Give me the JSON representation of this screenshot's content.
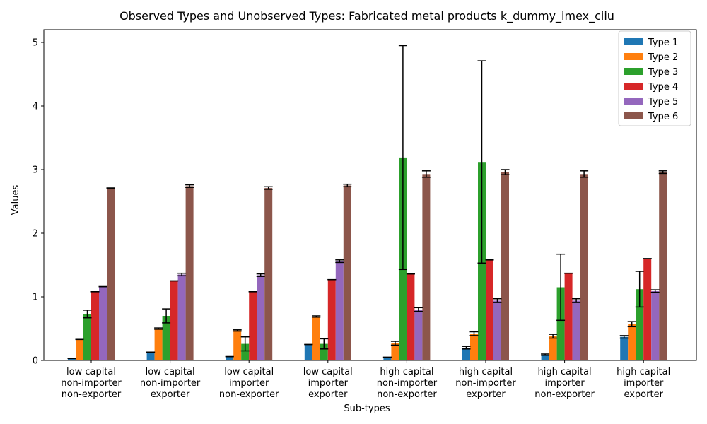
{
  "chart_data": {
    "type": "bar",
    "title": "Observed Types and Unobserved Types: Fabricated metal products k_dummy_imex_ciiu",
    "xlabel": "Sub-types",
    "ylabel": "Values",
    "ylim": [
      0,
      5.2
    ],
    "yticks": [
      0,
      1,
      2,
      3,
      4,
      5
    ],
    "grid": false,
    "legend_position": "upper right",
    "categories": [
      [
        "low capital",
        "non-importer",
        "non-exporter"
      ],
      [
        "low capital",
        "non-importer",
        "exporter"
      ],
      [
        "low capital",
        "importer",
        "non-exporter"
      ],
      [
        "low capital",
        "importer",
        "exporter"
      ],
      [
        "high capital",
        "non-importer",
        "non-exporter"
      ],
      [
        "high capital",
        "non-importer",
        "exporter"
      ],
      [
        "high capital",
        "importer",
        "non-exporter"
      ],
      [
        "high capital",
        "importer",
        "exporter"
      ]
    ],
    "series": [
      {
        "name": "Type 1",
        "color": "#1f77b4",
        "values": [
          0.03,
          0.13,
          0.06,
          0.25,
          0.05,
          0.2,
          0.09,
          0.37
        ],
        "errors": [
          0.0,
          0.0,
          0.0,
          0.0,
          0.0,
          0.02,
          0.01,
          0.02
        ]
      },
      {
        "name": "Type 2",
        "color": "#ff7f0e",
        "values": [
          0.33,
          0.5,
          0.47,
          0.69,
          0.27,
          0.42,
          0.38,
          0.57
        ],
        "errors": [
          0.0,
          0.01,
          0.01,
          0.01,
          0.03,
          0.03,
          0.03,
          0.04
        ]
      },
      {
        "name": "Type 3",
        "color": "#2ca02c",
        "values": [
          0.73,
          0.7,
          0.26,
          0.26,
          3.19,
          3.12,
          1.15,
          1.12
        ],
        "errors": [
          0.06,
          0.11,
          0.11,
          0.08,
          1.76,
          1.59,
          0.52,
          0.28
        ]
      },
      {
        "name": "Type 4",
        "color": "#d62728",
        "values": [
          1.08,
          1.25,
          1.08,
          1.27,
          1.36,
          1.58,
          1.37,
          1.6
        ],
        "errors": [
          0.0,
          0.0,
          0.0,
          0.0,
          0.0,
          0.0,
          0.0,
          0.0
        ]
      },
      {
        "name": "Type 5",
        "color": "#9467bd",
        "values": [
          1.16,
          1.35,
          1.34,
          1.56,
          0.8,
          0.94,
          0.94,
          1.09
        ],
        "errors": [
          0.0,
          0.02,
          0.02,
          0.02,
          0.03,
          0.03,
          0.03,
          0.02
        ]
      },
      {
        "name": "Type 6",
        "color": "#8c564b",
        "values": [
          2.71,
          2.74,
          2.71,
          2.75,
          2.93,
          2.96,
          2.93,
          2.96
        ],
        "errors": [
          0.0,
          0.02,
          0.02,
          0.02,
          0.05,
          0.04,
          0.05,
          0.02
        ]
      }
    ]
  }
}
